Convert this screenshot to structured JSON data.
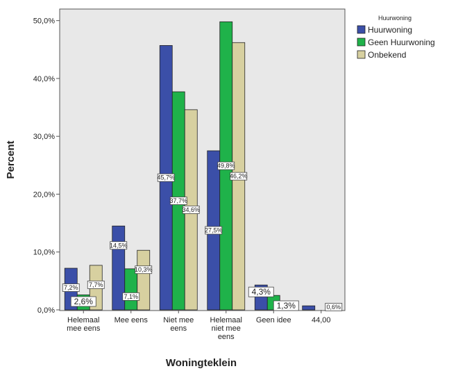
{
  "chart_data": {
    "type": "bar",
    "xlabel": "Woningteklein",
    "ylabel": "Percent",
    "ylim": [
      0,
      52
    ],
    "yticks": [
      "0,0%",
      "10,0%",
      "20,0%",
      "30,0%",
      "40,0%",
      "50,0%"
    ],
    "ytick_values": [
      0,
      10,
      20,
      30,
      40,
      50
    ],
    "grid": false,
    "legend_position": "top-right",
    "legend_title": "Huurwoning",
    "categories": [
      [
        "Helemaal",
        "mee eens"
      ],
      [
        "Mee eens"
      ],
      [
        "Niet mee",
        "eens"
      ],
      [
        "Helemaal",
        "niet mee",
        "eens"
      ],
      [
        "Geen idee"
      ],
      [
        "44,00"
      ]
    ],
    "series": [
      {
        "name": "Huurwoning",
        "color": "#3b4fa8",
        "values": [
          7.2,
          14.5,
          45.7,
          27.5,
          4.3,
          0.7
        ],
        "labels": [
          "7,2%",
          "14,5%",
          "45,7%",
          "27,5%",
          "4,3%",
          ""
        ]
      },
      {
        "name": "Geen Huurwoning",
        "color": "#1fb24a",
        "values": [
          2.6,
          7.1,
          37.7,
          49.8,
          2.5,
          0
        ],
        "labels": [
          "2,6%",
          "7,1%",
          "37,7%",
          "49,8%",
          "",
          ""
        ]
      },
      {
        "name": "Onbekend",
        "color": "#d7d0a0",
        "values": [
          7.7,
          10.3,
          34.6,
          46.2,
          1.3,
          0.6
        ],
        "labels": [
          "7,7%",
          "10,3%",
          "34,6%",
          "46,2%",
          "1,3%",
          "0,6%"
        ]
      }
    ]
  }
}
